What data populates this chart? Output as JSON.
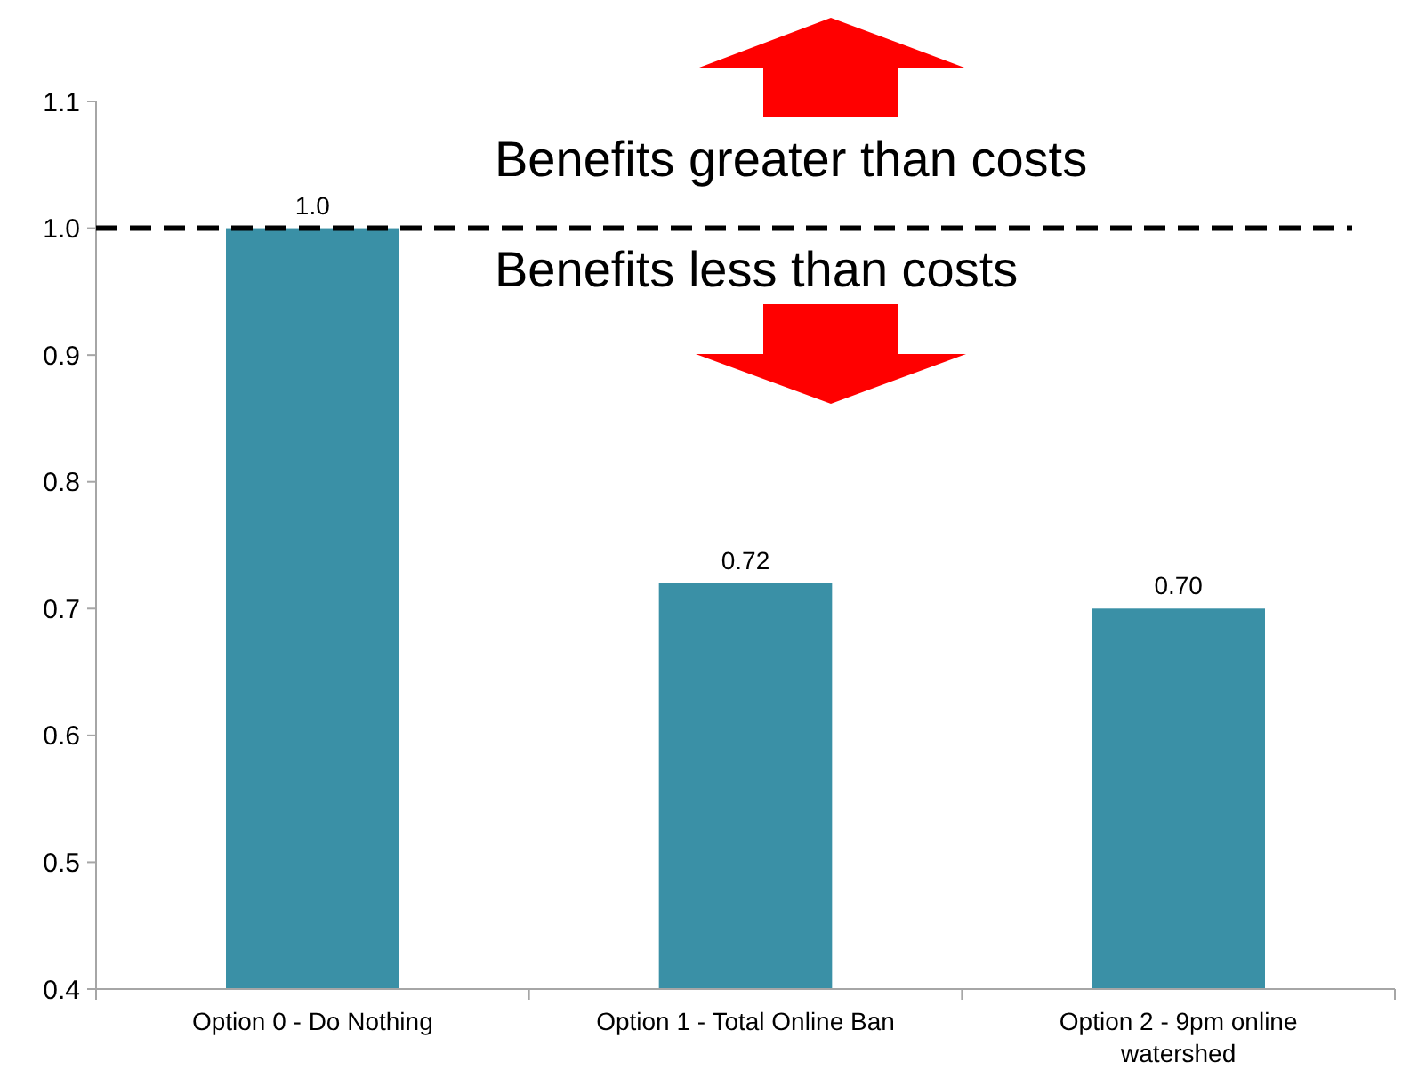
{
  "chart_data": {
    "type": "bar",
    "categories": [
      "Option 0 - Do Nothing",
      "Option 1 - Total Online Ban",
      "Option 2 - 9pm online watershed"
    ],
    "values": [
      1.0,
      0.72,
      0.7
    ],
    "color": "#3a90a6",
    "value_labels": [
      "1.0",
      "0.72",
      "0.70"
    ],
    "ylim": [
      0.4,
      1.1
    ],
    "yticks": [
      {
        "value": 0.4,
        "label": "0.4"
      },
      {
        "value": 0.5,
        "label": "0.5"
      },
      {
        "value": 0.6,
        "label": "0.6"
      },
      {
        "value": 0.7,
        "label": "0.7"
      },
      {
        "value": 0.8,
        "label": "0.8"
      },
      {
        "value": 0.9,
        "label": "0.9"
      },
      {
        "value": 1.0,
        "label": "1.0"
      },
      {
        "value": 1.1,
        "label": "1.1"
      }
    ],
    "ref_lines": [
      {
        "axis": "y",
        "value": 1.0,
        "color": "#000000",
        "line_style": "dashed"
      }
    ],
    "annotations": [
      "Benefits greater than costs",
      "Benefits less than costs"
    ],
    "grid": false
  }
}
